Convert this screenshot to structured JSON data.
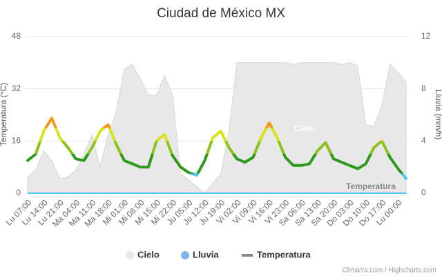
{
  "chart_data": {
    "type": "weather",
    "title": "Ciudad de México MX",
    "y_label": "Temperatura (°C)",
    "y2_label": "Lluvia (mm/h)",
    "ylim": [
      0,
      48
    ],
    "yticks": [
      0,
      16,
      32,
      48
    ],
    "y2lim": [
      0,
      12
    ],
    "y2ticks": [
      0,
      4,
      8,
      12
    ],
    "grid": true,
    "categories": [
      "Lu 07:00",
      null,
      "Lu 14:00",
      null,
      "Lu 21:00",
      null,
      "Ma 04:00",
      null,
      "Ma 11:00",
      null,
      "Ma 18:00",
      null,
      "Mi 01:00",
      null,
      "Mi 08:00",
      null,
      "Mi 15:00",
      null,
      "Mi 22:00",
      null,
      "Ju 05:00",
      null,
      "Ju 12:00",
      null,
      "Ju 19:00",
      null,
      "Vi 02:00",
      null,
      "Vi 09:00",
      null,
      "Vi 16:00",
      null,
      "Vi 23:00",
      null,
      "Sa 06:00",
      null,
      "Sa 13:00",
      null,
      "Sa 20:00",
      null,
      "Do 03:00",
      null,
      "Do 10:00",
      null,
      "Do 17:00",
      null,
      "Lu 00:00",
      null
    ],
    "series": [
      {
        "name": "Cielo",
        "kind": "area",
        "color": "#e8e8e8",
        "values": [
          5,
          7,
          13,
          10,
          4.5,
          5,
          7,
          12,
          18,
          8,
          18,
          25,
          38,
          39.5,
          35,
          30,
          30,
          36,
          30,
          6,
          4,
          2,
          0,
          3,
          6,
          19,
          40,
          40,
          40,
          40,
          40,
          40,
          40,
          39.5,
          40,
          40,
          40,
          40,
          40,
          39.5,
          40,
          39,
          21,
          20.5,
          27,
          39.5,
          37,
          34
        ]
      },
      {
        "name": "Lluvia",
        "kind": "line",
        "axis": "y2",
        "color": "#4fc3f7",
        "values": [
          0,
          0,
          0,
          0,
          0,
          0,
          0,
          0,
          0,
          0,
          0,
          0,
          0,
          0,
          0,
          0,
          0,
          0,
          0,
          0,
          0,
          0,
          0,
          0,
          0,
          0,
          0,
          0,
          0,
          0,
          0,
          0,
          0,
          0,
          0,
          0,
          0,
          0,
          0,
          0,
          0,
          0,
          0,
          0,
          0,
          0,
          0,
          0
        ]
      },
      {
        "name": "Temperatura",
        "kind": "zoned-line",
        "color": "#888888",
        "zones": [
          {
            "value": 0,
            "color": "#4fc3f7"
          },
          {
            "value": 6,
            "color": "#2e9a1c"
          },
          {
            "value": 12,
            "color": "#8cc21a"
          },
          {
            "value": 16,
            "color": "#d7e31c"
          },
          {
            "value": 20,
            "color": "#f39a12"
          }
        ],
        "values": [
          10,
          12,
          19,
          23,
          17,
          14,
          10.5,
          10,
          14,
          19,
          21,
          15,
          10,
          9,
          8,
          8,
          16,
          18,
          11.5,
          8,
          6.3,
          5.5,
          10,
          17,
          19,
          14,
          10.5,
          9.5,
          11,
          17,
          21.5,
          17,
          11,
          8.5,
          8.5,
          9,
          13,
          15.5,
          10.5,
          9.5,
          8.5,
          7.5,
          9,
          14,
          16,
          11,
          7.5,
          4.5
        ]
      }
    ],
    "annotations": [
      {
        "text": "Cielo"
      },
      {
        "text": "Temperatura"
      }
    ],
    "credit": "ClimaYa.com / Highcharts.com"
  }
}
